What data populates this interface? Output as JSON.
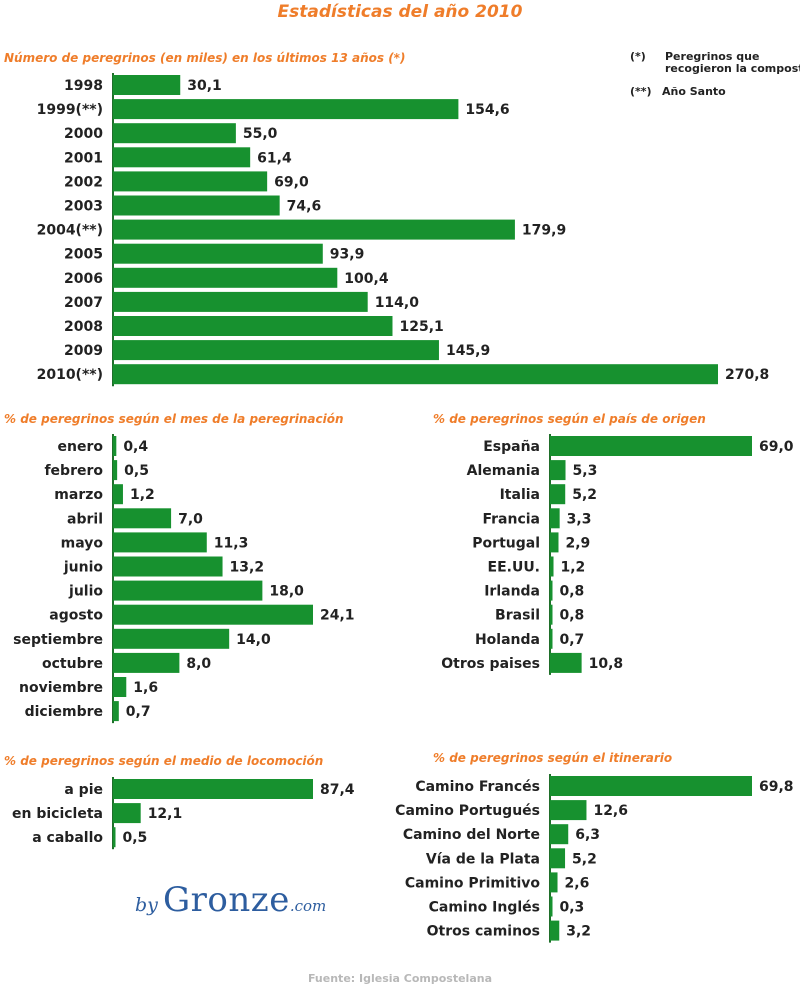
{
  "title": "Estadísticas del año 2010",
  "notes": {
    "n1_marker": "(*)",
    "n1_text": "Peregrinos que\nrecogieron la compostela",
    "n2_marker": "(**)",
    "n2_text": "Año Santo"
  },
  "colors": {
    "bar": "#17912f",
    "axis": "#1f6f2a",
    "accent": "#ef7d2a"
  },
  "chart_data": [
    {
      "id": "years",
      "type": "bar",
      "orientation": "horizontal",
      "title": "Número de peregrinos (en miles) en los últimos 13 años (*)",
      "categories": [
        "1998",
        "1999(**)",
        "2000",
        "2001",
        "2002",
        "2003",
        "2004(**)",
        "2005",
        "2006",
        "2007",
        "2008",
        "2009",
        "2010(**)"
      ],
      "values": [
        30.1,
        154.6,
        55.0,
        61.4,
        69.0,
        74.6,
        179.9,
        93.9,
        100.4,
        114.0,
        125.1,
        145.9,
        270.8
      ],
      "value_labels": [
        "30,1",
        "154,6",
        "55,0",
        "61,4",
        "69,0",
        "74,6",
        "179,9",
        "93,9",
        "100,4",
        "114,0",
        "125,1",
        "145,9",
        "270,8"
      ]
    },
    {
      "id": "months",
      "type": "bar",
      "orientation": "horizontal",
      "title": "% de peregrinos según el mes de la peregrinación",
      "categories": [
        "enero",
        "febrero",
        "marzo",
        "abril",
        "mayo",
        "junio",
        "julio",
        "agosto",
        "septiembre",
        "octubre",
        "noviembre",
        "diciembre"
      ],
      "values": [
        0.4,
        0.5,
        1.2,
        7.0,
        11.3,
        13.2,
        18.0,
        24.1,
        14.0,
        8.0,
        1.6,
        0.7
      ],
      "value_labels": [
        "0,4",
        "0,5",
        "1,2",
        "7,0",
        "11,3",
        "13,2",
        "18,0",
        "24,1",
        "14,0",
        "8,0",
        "1,6",
        "0,7"
      ]
    },
    {
      "id": "countries",
      "type": "bar",
      "orientation": "horizontal",
      "title": "% de peregrinos según el país de origen",
      "categories": [
        "España",
        "Alemania",
        "Italia",
        "Francia",
        "Portugal",
        "EE.UU.",
        "Irlanda",
        "Brasil",
        "Holanda",
        "Otros paises"
      ],
      "values": [
        69.0,
        5.3,
        5.2,
        3.3,
        2.9,
        1.2,
        0.8,
        0.8,
        0.7,
        10.8
      ],
      "value_labels": [
        "69,0",
        "5,3",
        "5,2",
        "3,3",
        "2,9",
        "1,2",
        "0,8",
        "0,8",
        "0,7",
        "10,8"
      ]
    },
    {
      "id": "transport",
      "type": "bar",
      "orientation": "horizontal",
      "title": "% de peregrinos según el medio de locomoción",
      "categories": [
        "a pie",
        "en bicicleta",
        "a caballo"
      ],
      "values": [
        87.4,
        12.1,
        0.5
      ],
      "value_labels": [
        "87,4",
        "12,1",
        "0,5"
      ]
    },
    {
      "id": "routes",
      "type": "bar",
      "orientation": "horizontal",
      "title": "% de peregrinos según el itinerario",
      "categories": [
        "Camino Francés",
        "Camino Portugués",
        "Camino del Norte",
        "Vía de la Plata",
        "Camino Primitivo",
        "Camino Inglés",
        "Otros caminos"
      ],
      "values": [
        69.8,
        12.6,
        6.3,
        5.2,
        2.6,
        0.3,
        3.2
      ],
      "value_labels": [
        "69,8",
        "12,6",
        "6,3",
        "5,2",
        "2,6",
        "0,3",
        "3,2"
      ]
    }
  ],
  "logo": {
    "by": "by",
    "name": "Gronze",
    "domain": ".com"
  },
  "source": "Fuente: Iglesia Compostelana"
}
